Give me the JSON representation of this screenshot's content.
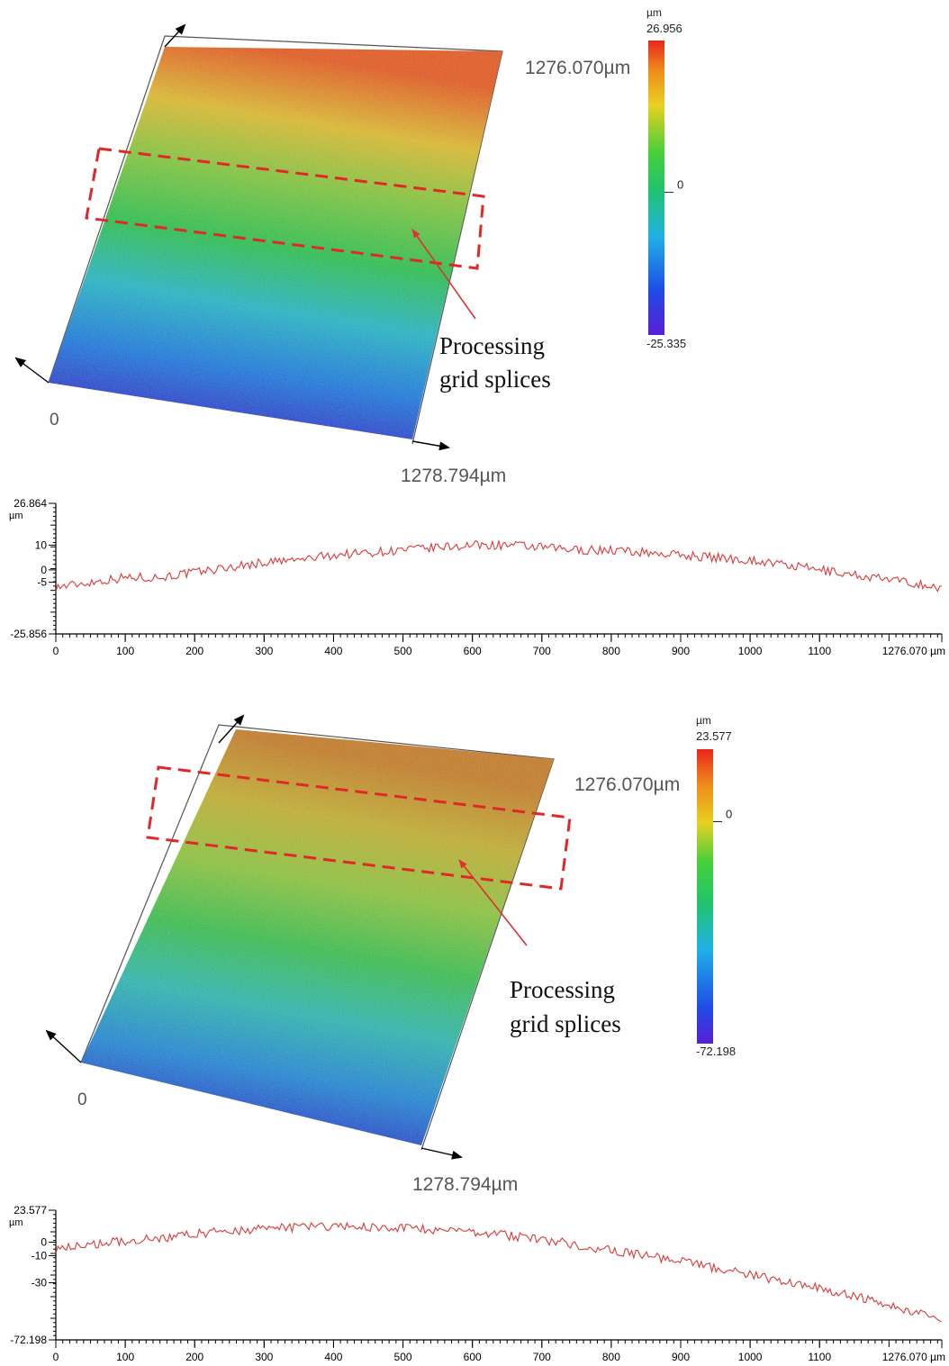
{
  "panels": [
    {
      "surface": {
        "y_extent_label": "1276.070µm",
        "x_extent_label": "1278.794µm",
        "origin_label": "0",
        "annotation": [
          "Processing",
          "grid splices"
        ],
        "stops": [
          "#2d27c8",
          "#1677e0",
          "#1fb6c8",
          "#27c24a",
          "#7cc83a",
          "#e0bc2a",
          "#e8561a"
        ]
      },
      "colorbar": {
        "unit": "µm",
        "max_label": "26.956",
        "mid_label": "0",
        "min_label": "-25.335",
        "max": 26.956,
        "min": -25.335,
        "mid": 0
      },
      "profile": {
        "type": "line",
        "unit": "µm",
        "y_tick_labels": [
          "26.864",
          "10",
          "0",
          "-5",
          "-25.856"
        ],
        "y_ticks": [
          26.864,
          10,
          0,
          -5,
          -25.856
        ],
        "ylim": [
          -25.856,
          26.864
        ],
        "x_tick_labels": [
          "0",
          "100",
          "200",
          "300",
          "400",
          "500",
          "600",
          "700",
          "800",
          "900",
          "1000",
          "1100",
          "1276.070 µm"
        ],
        "x_ticks": [
          0,
          100,
          200,
          300,
          400,
          500,
          600,
          700,
          800,
          900,
          1000,
          1100,
          1276.07
        ],
        "xlim": [
          0,
          1276.07
        ],
        "color": "#d93a3a",
        "x": [
          0,
          50,
          100,
          150,
          200,
          250,
          300,
          350,
          400,
          450,
          500,
          550,
          600,
          650,
          700,
          750,
          800,
          850,
          900,
          950,
          1000,
          1050,
          1100,
          1150,
          1200,
          1250,
          1276
        ],
        "y": [
          -7,
          -5,
          -3,
          -3,
          -1,
          1,
          3,
          4,
          6,
          7,
          8,
          9,
          10,
          10,
          9,
          8,
          8,
          7,
          6,
          5,
          4,
          2,
          0,
          -2,
          -4,
          -6,
          -8
        ]
      }
    },
    {
      "surface": {
        "y_extent_label": "1276.070µm",
        "x_extent_label": "1278.794µm",
        "origin_label": "0",
        "annotation": [
          "Processing",
          "grid splices"
        ],
        "stops": [
          "#2330c8",
          "#1c84d8",
          "#28b8b0",
          "#36c04a",
          "#8cc63a",
          "#c4b02c",
          "#c67a22"
        ]
      },
      "colorbar": {
        "unit": "µm",
        "max_label": "23.577",
        "mid_label": "0",
        "min_label": "-72.198",
        "max": 23.577,
        "min": -72.198,
        "mid": 0
      },
      "profile": {
        "type": "line",
        "unit": "µm",
        "y_tick_labels": [
          "23.577",
          "0",
          "-10",
          "-30",
          "-72.198"
        ],
        "y_ticks": [
          23.577,
          0,
          -10,
          -30,
          -72.198
        ],
        "ylim": [
          -72.198,
          23.577
        ],
        "x_tick_labels": [
          "0",
          "100",
          "200",
          "300",
          "400",
          "500",
          "600",
          "700",
          "800",
          "900",
          "1000",
          "1100",
          "1276.070 µm"
        ],
        "x_ticks": [
          0,
          100,
          200,
          300,
          400,
          500,
          600,
          700,
          800,
          900,
          1000,
          1100,
          1276.07
        ],
        "xlim": [
          0,
          1276.07
        ],
        "color": "#d93a3a",
        "x": [
          0,
          50,
          100,
          150,
          200,
          250,
          300,
          350,
          400,
          450,
          500,
          550,
          600,
          650,
          700,
          750,
          800,
          850,
          900,
          950,
          1000,
          1050,
          1100,
          1150,
          1200,
          1250,
          1276
        ],
        "y": [
          -5,
          -2,
          1,
          3,
          6,
          8,
          10,
          11,
          12,
          11,
          10,
          9,
          8,
          5,
          2,
          -2,
          -6,
          -10,
          -14,
          -19,
          -24,
          -29,
          -34,
          -40,
          -46,
          -54,
          -60
        ]
      }
    }
  ]
}
